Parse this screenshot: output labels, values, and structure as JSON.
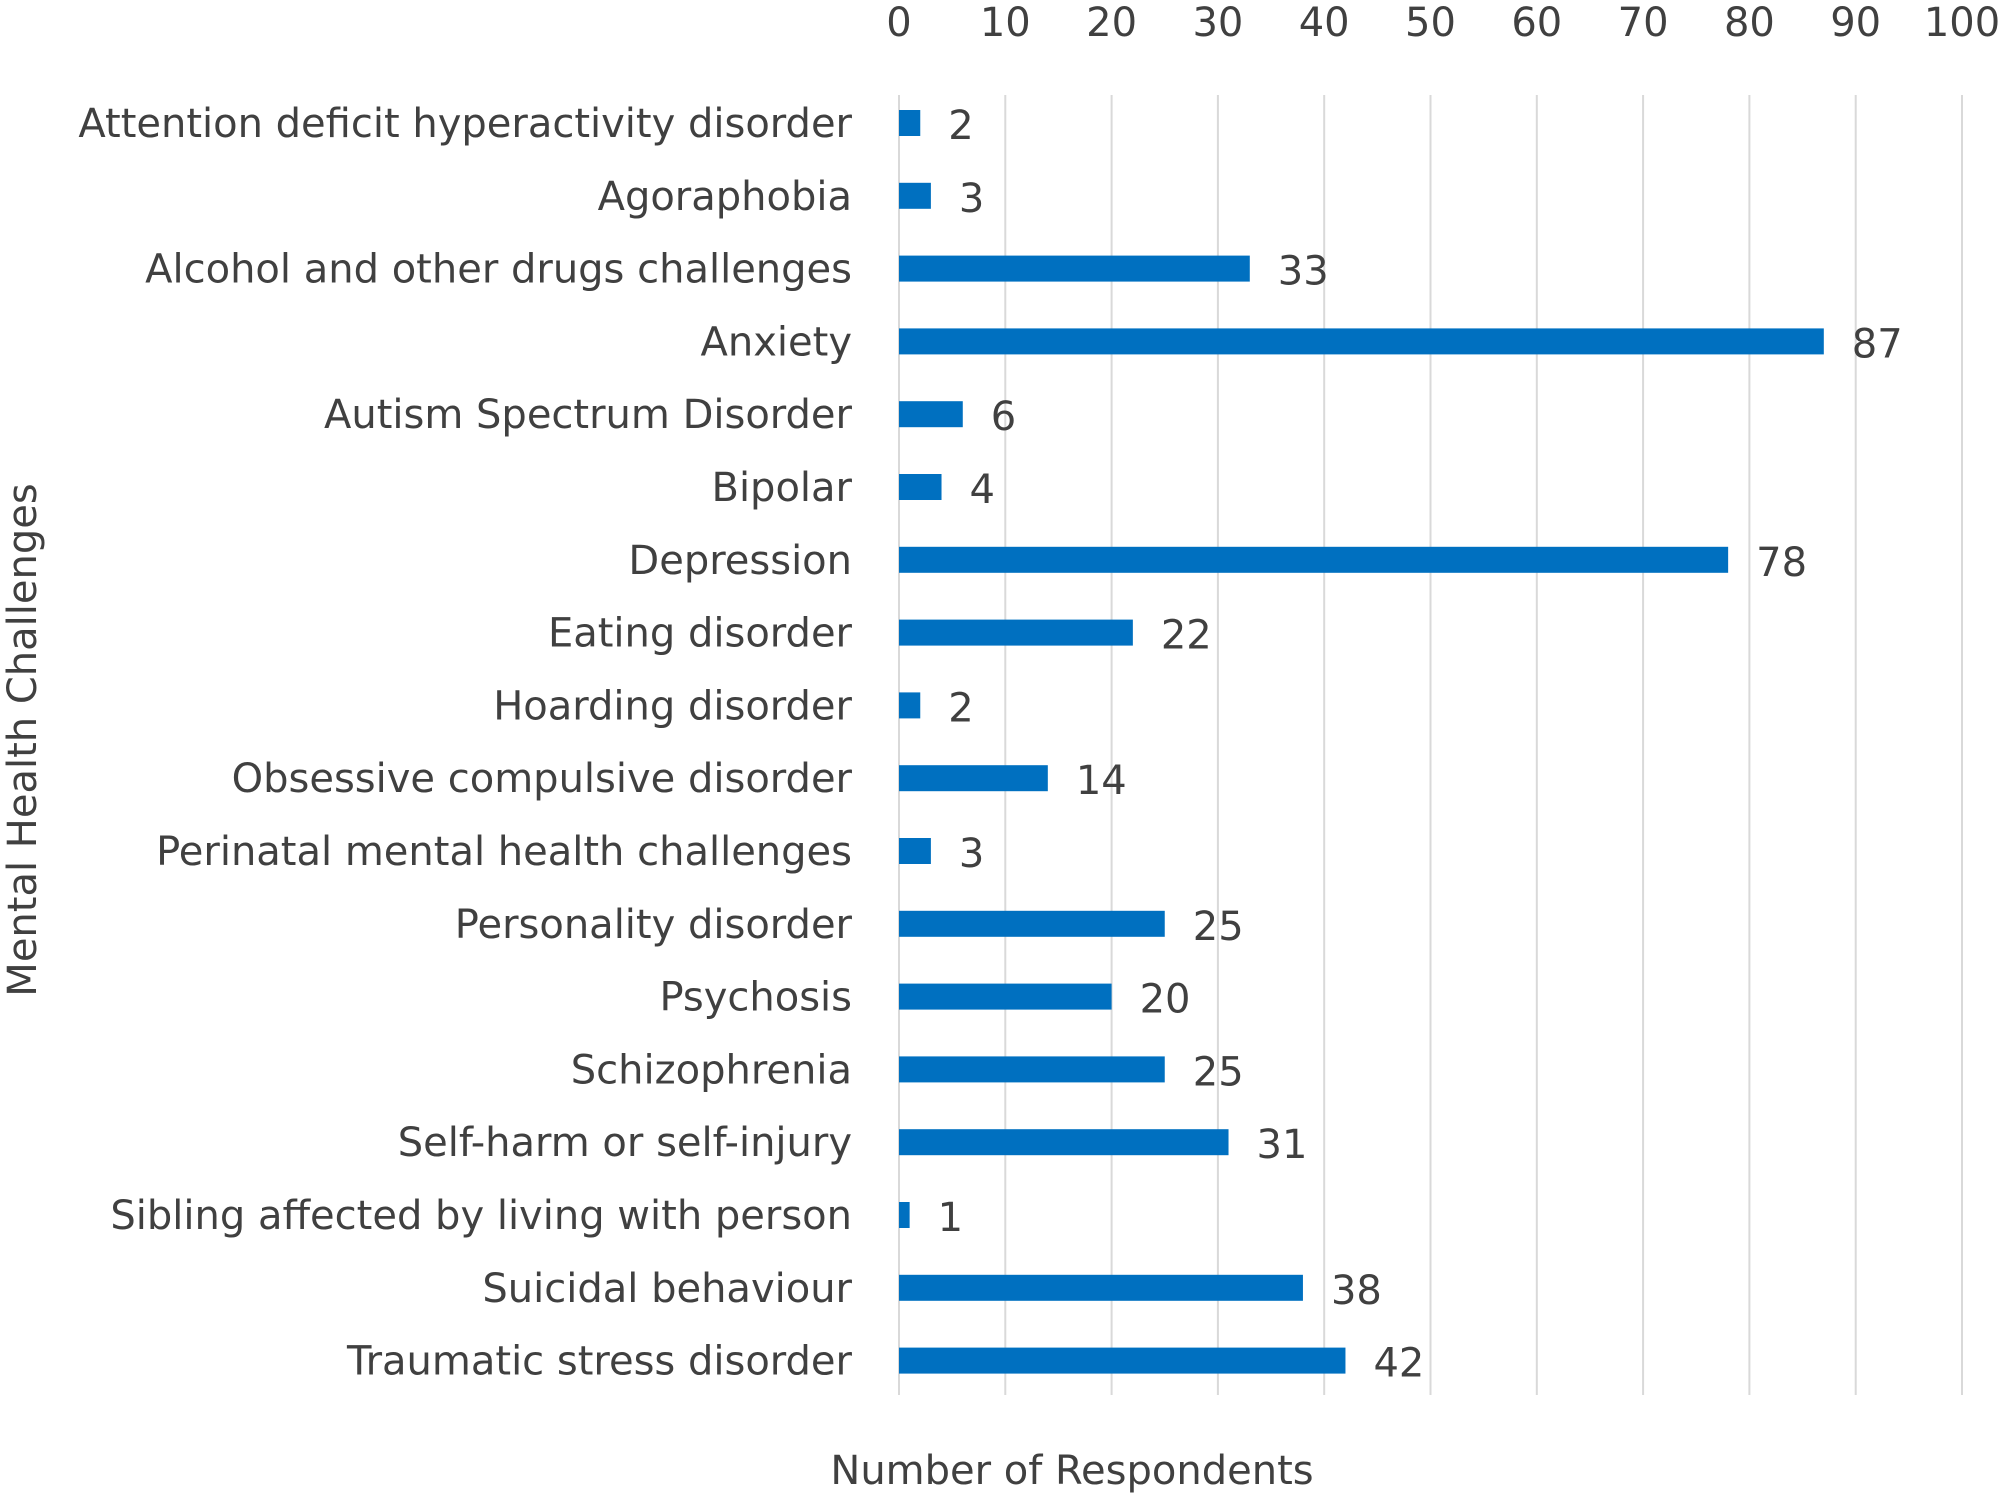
{
  "chart_data": {
    "type": "bar",
    "orientation": "horizontal",
    "categories": [
      "Attention deficit hyperactivity disorder",
      "Agoraphobia",
      "Alcohol and other drugs challenges",
      "Anxiety",
      "Autism Spectrum Disorder",
      "Bipolar",
      "Depression",
      "Eating disorder",
      "Hoarding disorder",
      "Obsessive compulsive disorder",
      "Perinatal mental health challenges",
      "Personality disorder",
      "Psychosis",
      "Schizophrenia",
      "Self-harm or self-injury",
      "Sibling affected by living with person",
      "Suicidal behaviour",
      "Traumatic stress disorder"
    ],
    "values": [
      2,
      3,
      33,
      87,
      6,
      4,
      78,
      22,
      2,
      14,
      3,
      25,
      20,
      25,
      31,
      1,
      38,
      42
    ],
    "xlabel": "Number of Respondents",
    "ylabel": "Mental Health Challenges",
    "xlim": [
      0,
      100
    ],
    "xticks": [
      "0",
      "10",
      "20",
      "30",
      "40",
      "50",
      "60",
      "70",
      "80",
      "90",
      "100"
    ],
    "x_axis_position": "top",
    "grid": true,
    "bar_color": "#0070c0",
    "data_labels": true
  }
}
